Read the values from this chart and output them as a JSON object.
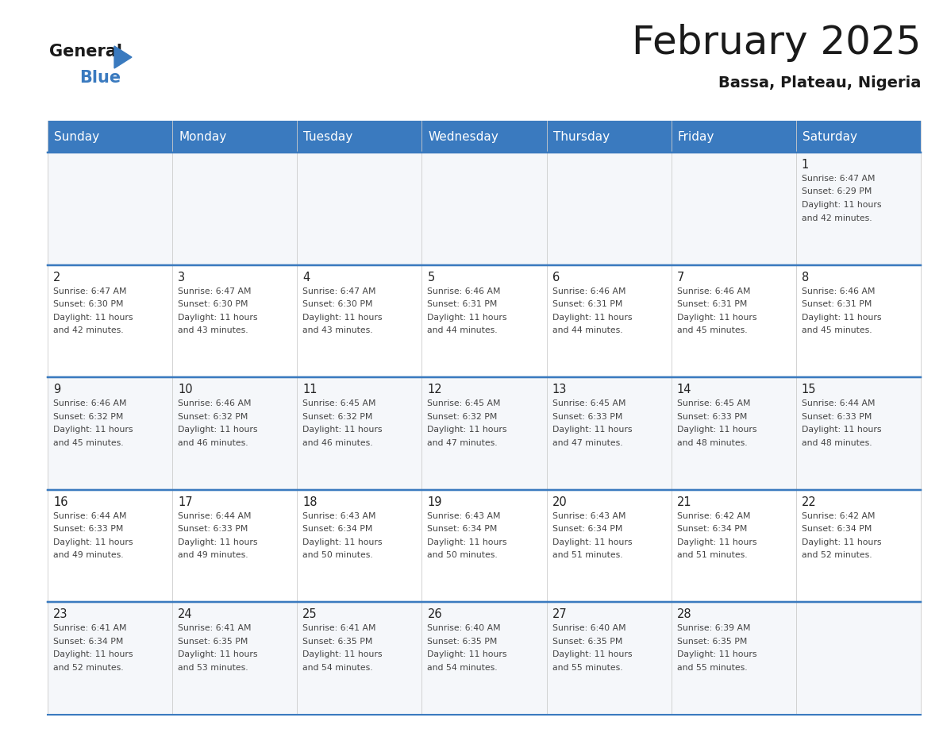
{
  "title": "February 2025",
  "subtitle": "Bassa, Plateau, Nigeria",
  "days_of_week": [
    "Sunday",
    "Monday",
    "Tuesday",
    "Wednesday",
    "Thursday",
    "Friday",
    "Saturday"
  ],
  "header_bg": "#3a7abf",
  "header_text": "#ffffff",
  "border_color": "#3a7abf",
  "cell_bg_even": "#f5f7fa",
  "cell_bg_odd": "#ffffff",
  "calendar": [
    [
      null,
      null,
      null,
      null,
      null,
      null,
      1
    ],
    [
      2,
      3,
      4,
      5,
      6,
      7,
      8
    ],
    [
      9,
      10,
      11,
      12,
      13,
      14,
      15
    ],
    [
      16,
      17,
      18,
      19,
      20,
      21,
      22
    ],
    [
      23,
      24,
      25,
      26,
      27,
      28,
      null
    ]
  ],
  "sunrise": {
    "1": "6:47 AM",
    "2": "6:47 AM",
    "3": "6:47 AM",
    "4": "6:47 AM",
    "5": "6:46 AM",
    "6": "6:46 AM",
    "7": "6:46 AM",
    "8": "6:46 AM",
    "9": "6:46 AM",
    "10": "6:46 AM",
    "11": "6:45 AM",
    "12": "6:45 AM",
    "13": "6:45 AM",
    "14": "6:45 AM",
    "15": "6:44 AM",
    "16": "6:44 AM",
    "17": "6:44 AM",
    "18": "6:43 AM",
    "19": "6:43 AM",
    "20": "6:43 AM",
    "21": "6:42 AM",
    "22": "6:42 AM",
    "23": "6:41 AM",
    "24": "6:41 AM",
    "25": "6:41 AM",
    "26": "6:40 AM",
    "27": "6:40 AM",
    "28": "6:39 AM"
  },
  "sunset": {
    "1": "6:29 PM",
    "2": "6:30 PM",
    "3": "6:30 PM",
    "4": "6:30 PM",
    "5": "6:31 PM",
    "6": "6:31 PM",
    "7": "6:31 PM",
    "8": "6:31 PM",
    "9": "6:32 PM",
    "10": "6:32 PM",
    "11": "6:32 PM",
    "12": "6:32 PM",
    "13": "6:33 PM",
    "14": "6:33 PM",
    "15": "6:33 PM",
    "16": "6:33 PM",
    "17": "6:33 PM",
    "18": "6:34 PM",
    "19": "6:34 PM",
    "20": "6:34 PM",
    "21": "6:34 PM",
    "22": "6:34 PM",
    "23": "6:34 PM",
    "24": "6:35 PM",
    "25": "6:35 PM",
    "26": "6:35 PM",
    "27": "6:35 PM",
    "28": "6:35 PM"
  },
  "daylight_hours": {
    "1": "11",
    "2": "11",
    "3": "11",
    "4": "11",
    "5": "11",
    "6": "11",
    "7": "11",
    "8": "11",
    "9": "11",
    "10": "11",
    "11": "11",
    "12": "11",
    "13": "11",
    "14": "11",
    "15": "11",
    "16": "11",
    "17": "11",
    "18": "11",
    "19": "11",
    "20": "11",
    "21": "11",
    "22": "11",
    "23": "11",
    "24": "11",
    "25": "11",
    "26": "11",
    "27": "11",
    "28": "11"
  },
  "daylight_minutes": {
    "1": "42",
    "2": "42",
    "3": "43",
    "4": "43",
    "5": "44",
    "6": "44",
    "7": "45",
    "8": "45",
    "9": "45",
    "10": "46",
    "11": "46",
    "12": "47",
    "13": "47",
    "14": "48",
    "15": "48",
    "16": "49",
    "17": "49",
    "18": "50",
    "19": "50",
    "20": "51",
    "21": "51",
    "22": "52",
    "23": "52",
    "24": "53",
    "25": "54",
    "26": "54",
    "27": "55",
    "28": "55"
  }
}
